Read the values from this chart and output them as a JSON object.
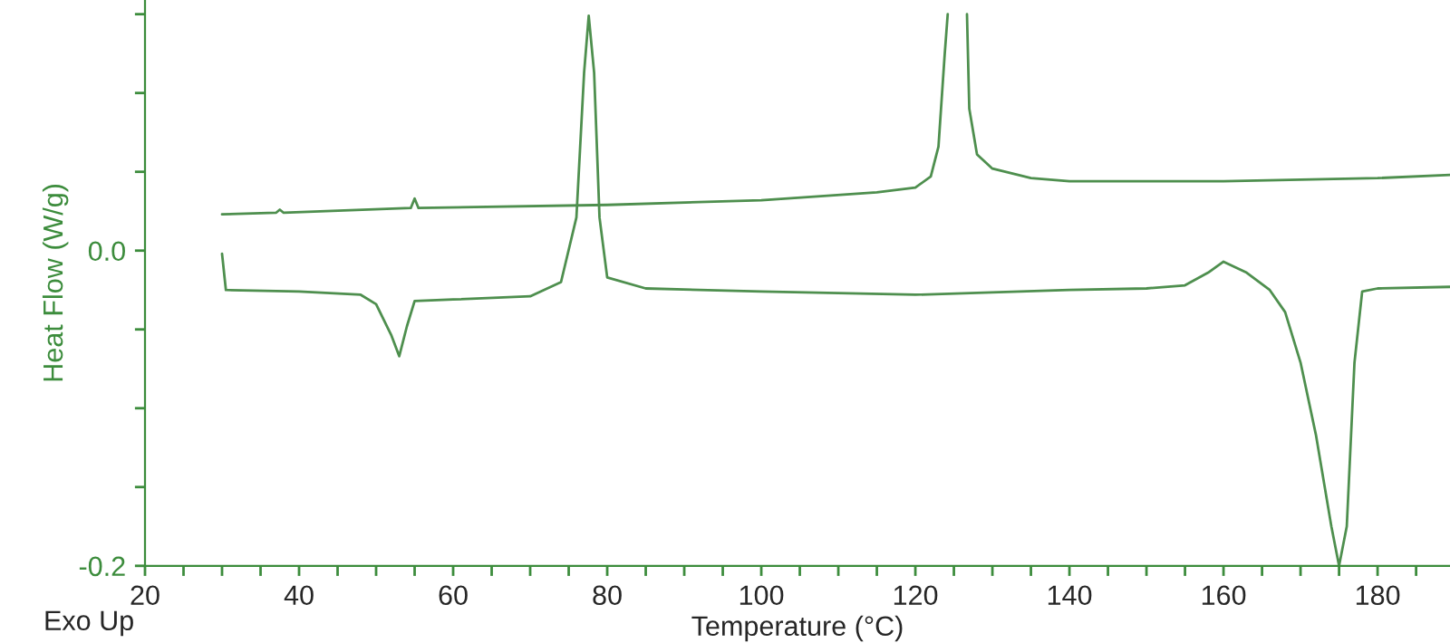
{
  "chart_data": {
    "type": "line",
    "xlabel": "Temperature (°C)",
    "ylabel": "Heat Flow (W/g)",
    "annotations": [
      "Exo Up"
    ],
    "xlim": [
      20,
      189.4
    ],
    "ylim": [
      -0.2,
      0.159
    ],
    "xticks": [
      20,
      {
        "value": 25,
        "label": null
      },
      {
        "value": 30,
        "label": null
      },
      {
        "value": 35,
        "label": null
      },
      40,
      {
        "value": 45,
        "label": null
      },
      {
        "value": 50,
        "label": null
      },
      {
        "value": 55,
        "label": null
      },
      60,
      {
        "value": 65,
        "label": null
      },
      {
        "value": 70,
        "label": null
      },
      {
        "value": 75,
        "label": null
      },
      80,
      {
        "value": 85,
        "label": null
      },
      {
        "value": 90,
        "label": null
      },
      {
        "value": 95,
        "label": null
      },
      100,
      {
        "value": 105,
        "label": null
      },
      {
        "value": 110,
        "label": null
      },
      {
        "value": 115,
        "label": null
      },
      120,
      {
        "value": 125,
        "label": null
      },
      {
        "value": 130,
        "label": null
      },
      {
        "value": 135,
        "label": null
      },
      140,
      {
        "value": 145,
        "label": null
      },
      {
        "value": 150,
        "label": null
      },
      {
        "value": 155,
        "label": null
      },
      160,
      {
        "value": 165,
        "label": null
      },
      {
        "value": 170,
        "label": null
      },
      {
        "value": 175,
        "label": null
      },
      180,
      {
        "value": 185,
        "label": null
      }
    ],
    "yticks": [
      {
        "value": -0.2,
        "label": "-0.2"
      },
      {
        "value": -0.15,
        "label": null
      },
      {
        "value": -0.1,
        "label": null
      },
      {
        "value": -0.05,
        "label": null
      },
      {
        "value": 0.0,
        "label": "0.0"
      },
      {
        "value": 0.05,
        "label": null
      },
      {
        "value": 0.1,
        "label": null
      },
      {
        "value": 0.15,
        "label": null
      }
    ],
    "grid": false,
    "legend": false,
    "marker": "none",
    "line_style": "solid",
    "series": [
      {
        "color": "#4e8f4e",
        "x": [
          30,
          37,
          37.5,
          38,
          54.5,
          55,
          55.5,
          80,
          100,
          115,
          120,
          122,
          123,
          123.8,
          124.2,
          125.4,
          126.7,
          127,
          128,
          130,
          135,
          140,
          160,
          180,
          189.4
        ],
        "values": [
          0.023,
          0.024,
          0.026,
          0.024,
          0.027,
          0.033,
          0.027,
          0.029,
          0.032,
          0.037,
          0.04,
          0.047,
          0.066,
          0.124,
          0.15,
          null,
          0.15,
          0.09,
          0.061,
          0.052,
          0.046,
          0.044,
          0.044,
          0.046,
          0.048
        ]
      },
      {
        "color": "#4e8f4e",
        "x": [
          30,
          30.5,
          40,
          48,
          50,
          52,
          53,
          54,
          55,
          60,
          70,
          74,
          76,
          77,
          77.6,
          78.3,
          79,
          80,
          85,
          100,
          120,
          140,
          150,
          155,
          158,
          160,
          163,
          166,
          168,
          170,
          172,
          174,
          175,
          176,
          177,
          178,
          180,
          189.4
        ],
        "values": [
          -0.002,
          -0.025,
          -0.026,
          -0.028,
          -0.034,
          -0.054,
          -0.067,
          -0.048,
          -0.032,
          -0.031,
          -0.029,
          -0.02,
          0.021,
          0.113,
          0.149,
          0.113,
          0.021,
          -0.017,
          -0.024,
          -0.026,
          -0.028,
          -0.025,
          -0.024,
          -0.022,
          -0.014,
          -0.007,
          -0.014,
          -0.025,
          -0.039,
          -0.071,
          -0.117,
          -0.175,
          -0.2,
          -0.175,
          -0.071,
          -0.026,
          -0.024,
          -0.023
        ]
      }
    ]
  }
}
